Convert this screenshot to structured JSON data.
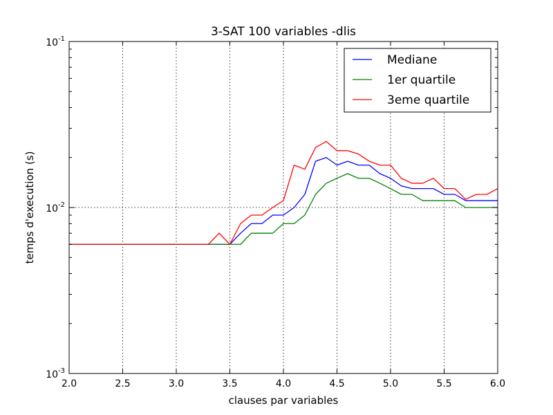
{
  "chart_data": {
    "type": "line",
    "title": "3-SAT 100 variables -dlis",
    "xlabel": "clauses par variables",
    "ylabel": "temps d'execution (s)",
    "xlim": [
      2.0,
      6.0
    ],
    "ylim": [
      0.001,
      0.1
    ],
    "yscale": "log",
    "grid": true,
    "legend_position": "top-right",
    "x_ticks": [
      2.0,
      2.5,
      3.0,
      3.5,
      4.0,
      4.5,
      5.0,
      5.5,
      6.0
    ],
    "x_tick_labels": [
      "2.0",
      "2.5",
      "3.0",
      "3.5",
      "4.0",
      "4.5",
      "5.0",
      "5.5",
      "6.0"
    ],
    "y_ticks": [
      {
        "value": 0.001,
        "base": "10",
        "exp": "-3"
      },
      {
        "value": 0.01,
        "base": "10",
        "exp": "-2"
      },
      {
        "value": 0.1,
        "base": "10",
        "exp": "-1"
      }
    ],
    "x": [
      2.0,
      2.1,
      2.2,
      2.3,
      2.4,
      2.5,
      2.6,
      2.7,
      2.8,
      2.9,
      3.0,
      3.1,
      3.2,
      3.3,
      3.4,
      3.5,
      3.6,
      3.7,
      3.8,
      3.9,
      4.0,
      4.1,
      4.2,
      4.3,
      4.4,
      4.5,
      4.6,
      4.7,
      4.8,
      4.9,
      5.0,
      5.1,
      5.2,
      5.3,
      5.4,
      5.5,
      5.6,
      5.7,
      5.8,
      5.9,
      6.0
    ],
    "series": [
      {
        "name": "Mediane",
        "color": "#0000ff",
        "values": [
          0.006,
          0.006,
          0.006,
          0.006,
          0.006,
          0.006,
          0.006,
          0.006,
          0.006,
          0.006,
          0.006,
          0.006,
          0.006,
          0.006,
          0.006,
          0.006,
          0.007,
          0.008,
          0.008,
          0.009,
          0.009,
          0.01,
          0.012,
          0.019,
          0.02,
          0.018,
          0.019,
          0.018,
          0.018,
          0.016,
          0.015,
          0.0135,
          0.013,
          0.013,
          0.013,
          0.012,
          0.012,
          0.011,
          0.011,
          0.011,
          0.011
        ]
      },
      {
        "name": "1er quartile",
        "color": "#008000",
        "values": [
          0.006,
          0.006,
          0.006,
          0.006,
          0.006,
          0.006,
          0.006,
          0.006,
          0.006,
          0.006,
          0.006,
          0.006,
          0.006,
          0.006,
          0.006,
          0.006,
          0.006,
          0.007,
          0.007,
          0.007,
          0.008,
          0.008,
          0.009,
          0.012,
          0.014,
          0.015,
          0.016,
          0.015,
          0.015,
          0.014,
          0.013,
          0.012,
          0.012,
          0.011,
          0.011,
          0.011,
          0.011,
          0.01,
          0.01,
          0.01,
          0.01
        ]
      },
      {
        "name": "3eme quartile",
        "color": "#ff0000",
        "values": [
          0.006,
          0.006,
          0.006,
          0.006,
          0.006,
          0.006,
          0.006,
          0.006,
          0.006,
          0.006,
          0.006,
          0.006,
          0.006,
          0.006,
          0.007,
          0.006,
          0.008,
          0.009,
          0.009,
          0.01,
          0.011,
          0.018,
          0.017,
          0.023,
          0.025,
          0.022,
          0.022,
          0.021,
          0.019,
          0.018,
          0.018,
          0.015,
          0.014,
          0.014,
          0.015,
          0.013,
          0.013,
          0.0112,
          0.012,
          0.012,
          0.013
        ]
      }
    ]
  }
}
